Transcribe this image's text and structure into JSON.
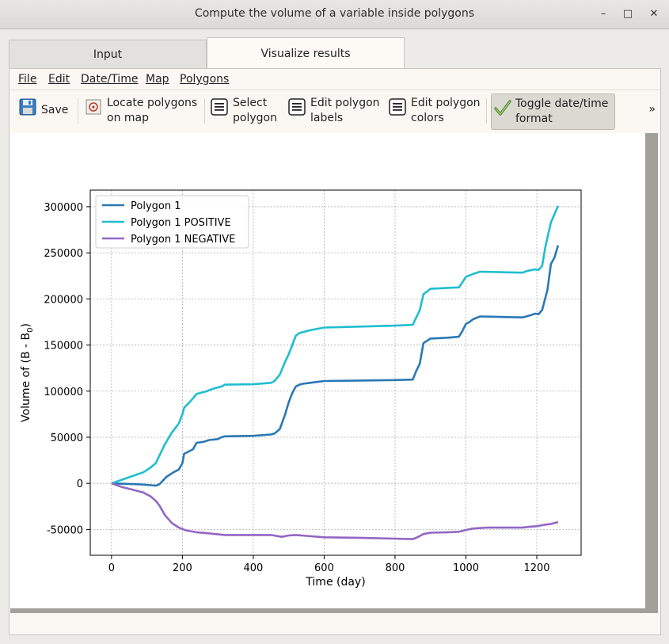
{
  "window": {
    "title": "Compute the volume of a variable inside polygons",
    "minimize_label": "–",
    "maximize_label": "□",
    "close_label": "✕"
  },
  "tabs": [
    {
      "label": "Input",
      "active": false
    },
    {
      "label": "Visualize results",
      "active": true
    }
  ],
  "menu": {
    "file": "File",
    "edit": "Edit",
    "datetime": "Date/Time",
    "map": "Map",
    "polygons": "Polygons"
  },
  "toolbar": {
    "save": "Save",
    "locate_1": "Locate polygons",
    "locate_2": "on map",
    "select_1": "Select",
    "select_2": "polygon",
    "labels_1": "Edit polygon",
    "labels_2": "labels",
    "colors_1": "Edit polygon",
    "colors_2": "colors",
    "toggle_1": "Toggle date/time",
    "toggle_2": "format",
    "overflow": "»"
  },
  "icons": {
    "save": "floppy-disk-icon",
    "locate": "map-locate-icon",
    "list": "list-icon",
    "check": "checkmark-icon"
  },
  "chart_data": {
    "type": "line",
    "xlabel": "Time (day)",
    "ylabel": "Volume of (B - B",
    "ylabel_sub": "0",
    "ylabel_end": ")",
    "xlim": [
      -60,
      1325
    ],
    "ylim": [
      -78000,
      318000
    ],
    "xticks": [
      0,
      200,
      400,
      600,
      800,
      1000,
      1200
    ],
    "yticks": [
      -50000,
      0,
      50000,
      100000,
      150000,
      200000,
      250000,
      300000
    ],
    "grid": true,
    "legend_position": "top-left",
    "series": [
      {
        "name": "Polygon 1",
        "color": "#2a78b5",
        "x": [
          0,
          40,
          80,
          110,
          125,
          135,
          145,
          155,
          175,
          190,
          200,
          205,
          215,
          230,
          240,
          260,
          275,
          300,
          310,
          320,
          400,
          450,
          460,
          475,
          490,
          500,
          510,
          520,
          530,
          540,
          560,
          600,
          700,
          800,
          850,
          860,
          870,
          880,
          900,
          950,
          980,
          990,
          1000,
          1010,
          1020,
          1040,
          1100,
          1160,
          1170,
          1180,
          1195,
          1205,
          1215,
          1230,
          1240,
          1250,
          1260
        ],
        "y": [
          0,
          -500,
          -1000,
          -2000,
          -2500,
          -1000,
          3000,
          7000,
          12000,
          15000,
          22000,
          32000,
          34000,
          37000,
          44000,
          45000,
          47000,
          48000,
          50000,
          51000,
          51500,
          53000,
          54000,
          59000,
          75000,
          88000,
          98000,
          105000,
          107000,
          108000,
          109000,
          111000,
          111500,
          112000,
          112500,
          122000,
          130000,
          152000,
          157000,
          158000,
          159000,
          165000,
          173000,
          175000,
          178000,
          181000,
          180500,
          180000,
          181000,
          182000,
          184000,
          183500,
          188000,
          210000,
          238000,
          245000,
          258000
        ]
      },
      {
        "name": "Polygon 1 POSITIVE",
        "color": "#1fbecf",
        "x": [
          0,
          30,
          60,
          90,
          110,
          125,
          135,
          150,
          170,
          190,
          200,
          205,
          215,
          225,
          240,
          270,
          275,
          290,
          310,
          320,
          400,
          450,
          460,
          475,
          490,
          500,
          510,
          520,
          530,
          540,
          560,
          600,
          700,
          800,
          850,
          860,
          870,
          880,
          900,
          950,
          980,
          990,
          1000,
          1020,
          1040,
          1100,
          1160,
          1170,
          1180,
          1195,
          1205,
          1215,
          1225,
          1240,
          1250,
          1260
        ],
        "y": [
          0,
          4000,
          8000,
          12000,
          17000,
          22000,
          30000,
          42000,
          55000,
          65000,
          75000,
          82000,
          86000,
          90000,
          97000,
          100000,
          101000,
          103000,
          105000,
          107000,
          107500,
          109000,
          111000,
          118000,
          132000,
          140000,
          150000,
          160000,
          163000,
          164000,
          166000,
          169000,
          170000,
          171000,
          172000,
          180000,
          188000,
          205000,
          211000,
          212000,
          212500,
          218000,
          224000,
          227000,
          229500,
          229000,
          228500,
          230000,
          231000,
          232000,
          231500,
          236000,
          258000,
          283000,
          292000,
          301000
        ]
      },
      {
        "name": "Polygon 1 NEGATIVE",
        "color": "#9366c4",
        "x": [
          0,
          30,
          60,
          90,
          110,
          125,
          135,
          150,
          170,
          190,
          210,
          240,
          280,
          320,
          400,
          450,
          480,
          500,
          520,
          600,
          700,
          800,
          850,
          860,
          870,
          880,
          900,
          950,
          980,
          990,
          1000,
          1020,
          1060,
          1100,
          1160,
          1180,
          1200,
          1220,
          1240,
          1260
        ],
        "y": [
          0,
          -4000,
          -7000,
          -10000,
          -14000,
          -19000,
          -24000,
          -34000,
          -43000,
          -48000,
          -51000,
          -53000,
          -54500,
          -56000,
          -56000,
          -56000,
          -58000,
          -56500,
          -56000,
          -58500,
          -59000,
          -60000,
          -60500,
          -59000,
          -57000,
          -55000,
          -53500,
          -53000,
          -52500,
          -51500,
          -50500,
          -49000,
          -48000,
          -48000,
          -48000,
          -47000,
          -46500,
          -45000,
          -44000,
          -42000
        ]
      }
    ]
  }
}
